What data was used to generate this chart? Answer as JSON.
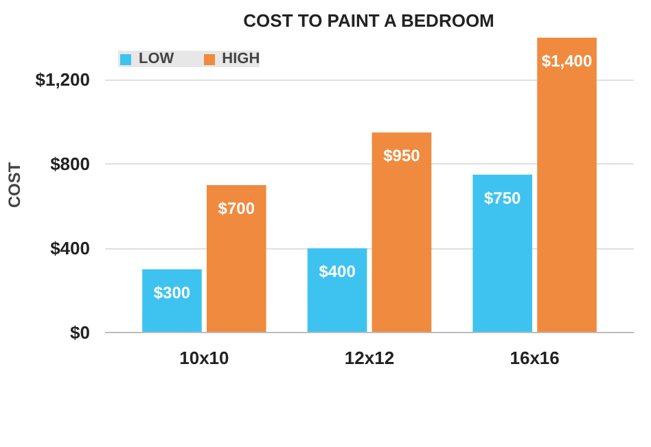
{
  "chart_data": {
    "type": "bar",
    "title": "COST TO PAINT A BEDROOM",
    "ylabel": "COST",
    "categories": [
      "10x10",
      "12x12",
      "16x16"
    ],
    "series": [
      {
        "name": "LOW",
        "color": "#3ec3f0",
        "values": [
          300,
          400,
          750
        ],
        "value_labels": [
          "$300",
          "$400",
          "$750"
        ]
      },
      {
        "name": "HIGH",
        "color": "#f08a3e",
        "values": [
          700,
          950,
          1400
        ],
        "value_labels": [
          "$700",
          "$950",
          "$1,400"
        ]
      }
    ],
    "ylim": [
      0,
      1400
    ],
    "yticks": [
      {
        "value": 0,
        "label": "$0"
      },
      {
        "value": 400,
        "label": "$400"
      },
      {
        "value": 800,
        "label": "$800"
      },
      {
        "value": 1200,
        "label": "$1,200"
      }
    ],
    "grid": "y",
    "legend": "top left"
  }
}
